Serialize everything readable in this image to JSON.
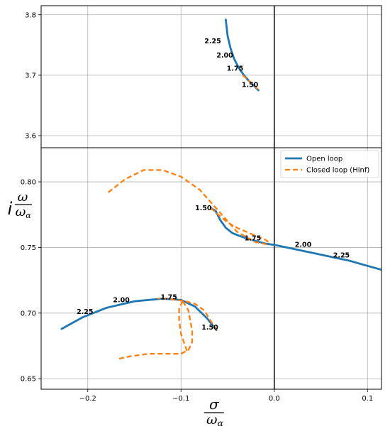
{
  "chart_data": {
    "type": "line",
    "xlabel": {
      "num": "σ",
      "den_base": "ω",
      "den_sub": "α"
    },
    "ylabel": {
      "prefix": "i",
      "num": "ω",
      "den_base": "ω",
      "den_sub": "α"
    },
    "xlim": [
      -0.25,
      0.115
    ],
    "xticks": [
      -0.2,
      -0.1,
      0.0,
      0.1
    ],
    "xtick_labels": [
      "−0.2",
      "−0.1",
      "0.0",
      "0.1"
    ],
    "legend": {
      "placement": "top-right of lower panel",
      "entries": [
        {
          "label": "Open loop",
          "color": "#1f77b4",
          "style": "solid"
        },
        {
          "label": "Closed loop (Hinf)",
          "color": "#ff7f0e",
          "style": "dashed"
        }
      ]
    },
    "panels": [
      {
        "id": "upper",
        "ylim": [
          3.58,
          3.815
        ],
        "yticks": [
          3.6,
          3.7,
          3.8
        ],
        "ytick_labels": [
          "3.6",
          "3.7",
          "3.8"
        ],
        "grid": true,
        "series": [
          {
            "name": "Open loop",
            "color": "#1f77b4",
            "dash": false,
            "x": [
              -0.052,
              -0.05,
              -0.047,
              -0.043,
              -0.038,
              -0.033,
              -0.028,
              -0.024,
              -0.02,
              -0.017
            ],
            "y": [
              3.792,
              3.765,
              3.745,
              3.727,
              3.712,
              3.701,
              3.692,
              3.686,
              3.68,
              3.675
            ]
          },
          {
            "name": "Closed loop (Hinf)",
            "color": "#ff7f0e",
            "dash": true,
            "x": [
              -0.034,
              -0.03,
              -0.026,
              -0.022,
              -0.019,
              -0.017
            ],
            "y": [
              3.7,
              3.695,
              3.689,
              3.684,
              3.679,
              3.675
            ]
          }
        ],
        "annotations": [
          {
            "text": "2.25",
            "x": -0.066,
            "y": 3.756
          },
          {
            "text": "2.00",
            "x": -0.053,
            "y": 3.733
          },
          {
            "text": "1.75",
            "x": -0.042,
            "y": 3.711
          },
          {
            "text": "1.50",
            "x": -0.026,
            "y": 3.684
          }
        ]
      },
      {
        "id": "lower",
        "ylim": [
          0.642,
          0.826
        ],
        "yticks": [
          0.65,
          0.7,
          0.75,
          0.8
        ],
        "ytick_labels": [
          "0.65",
          "0.70",
          "0.75",
          "0.80"
        ],
        "grid": true,
        "series": [
          {
            "name": "Open loop",
            "color": "#1f77b4",
            "dash": false,
            "x": [
              -0.228,
              -0.205,
              -0.18,
              -0.15,
              -0.12,
              -0.1,
              -0.085,
              -0.072,
              -0.062
            ],
            "y": [
              0.688,
              0.697,
              0.704,
              0.709,
              0.711,
              0.71,
              0.705,
              0.696,
              0.687
            ]
          },
          {
            "name": "Open loop",
            "color": "#1f77b4",
            "dash": false,
            "x": [
              -0.068,
              -0.063,
              -0.058,
              -0.052,
              -0.045,
              -0.038,
              -0.03,
              -0.02,
              -0.01,
              0.0
            ],
            "y": [
              0.78,
              0.778,
              0.771,
              0.765,
              0.761,
              0.759,
              0.757,
              0.755,
              0.753,
              0.752
            ]
          },
          {
            "name": "Open loop",
            "color": "#1f77b4",
            "dash": false,
            "x": [
              0.0,
              0.02,
              0.04,
              0.06,
              0.08,
              0.1,
              0.115
            ],
            "y": [
              0.752,
              0.749,
              0.746,
              0.743,
              0.74,
              0.736,
              0.733
            ]
          },
          {
            "name": "Closed loop (Hinf)",
            "color": "#ff7f0e",
            "dash": true,
            "x": [
              -0.178,
              -0.16,
              -0.14,
              -0.12,
              -0.1,
              -0.08,
              -0.06,
              -0.04,
              -0.02,
              -0.005
            ],
            "y": [
              0.792,
              0.802,
              0.809,
              0.809,
              0.804,
              0.794,
              0.778,
              0.762,
              0.754,
              0.752
            ]
          },
          {
            "name": "Closed loop (Hinf)",
            "color": "#ff7f0e",
            "dash": true,
            "x": [
              -0.068,
              -0.06,
              -0.05,
              -0.04,
              -0.03,
              -0.02,
              -0.01,
              -0.004
            ],
            "y": [
              0.78,
              0.775,
              0.769,
              0.765,
              0.762,
              0.759,
              0.756,
              0.753
            ]
          },
          {
            "name": "Closed loop (Hinf)",
            "color": "#ff7f0e",
            "dash": true,
            "x": [
              -0.062,
              -0.068,
              -0.075,
              -0.085,
              -0.095,
              -0.105,
              -0.115,
              -0.125
            ],
            "y": [
              0.687,
              0.694,
              0.702,
              0.707,
              0.709,
              0.71,
              0.711,
              0.711
            ]
          },
          {
            "name": "Closed loop (Hinf)",
            "color": "#ff7f0e",
            "dash": true,
            "x": [
              -0.098,
              -0.092,
              -0.09,
              -0.088,
              -0.088,
              -0.092,
              -0.1,
              -0.115,
              -0.135,
              -0.155,
              -0.168
            ],
            "y": [
              0.709,
              0.702,
              0.694,
              0.686,
              0.678,
              0.672,
              0.669,
              0.669,
              0.669,
              0.667,
              0.665
            ]
          },
          {
            "name": "Closed loop (Hinf)",
            "color": "#ff7f0e",
            "dash": true,
            "x": [
              -0.098,
              -0.102,
              -0.102,
              -0.1,
              -0.096,
              -0.093
            ],
            "y": [
              0.709,
              0.704,
              0.694,
              0.684,
              0.676,
              0.67
            ]
          }
        ],
        "annotations": [
          {
            "text": "1.50",
            "x": -0.076,
            "y": 0.78
          },
          {
            "text": "1.75",
            "x": -0.023,
            "y": 0.757
          },
          {
            "text": "2.00",
            "x": 0.031,
            "y": 0.752
          },
          {
            "text": "2.25",
            "x": 0.072,
            "y": 0.744
          },
          {
            "text": "2.25",
            "x": -0.203,
            "y": 0.701
          },
          {
            "text": "2.00",
            "x": -0.164,
            "y": 0.71
          },
          {
            "text": "1.75",
            "x": -0.113,
            "y": 0.712
          },
          {
            "text": "1.50",
            "x": -0.069,
            "y": 0.689
          }
        ]
      }
    ]
  }
}
